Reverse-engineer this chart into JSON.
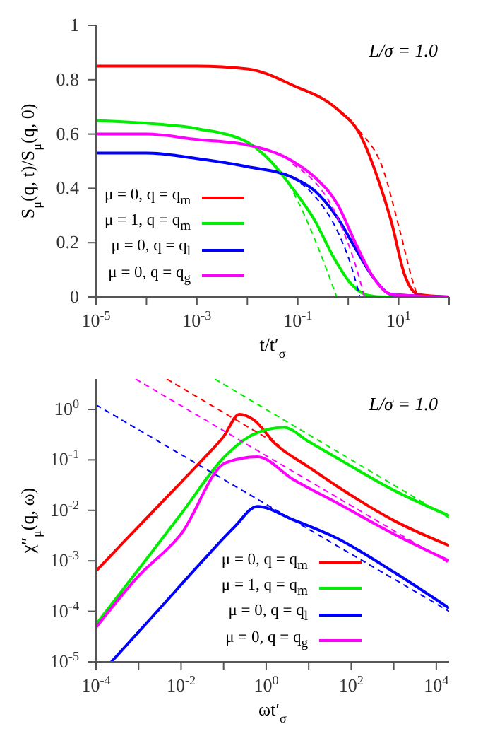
{
  "chart_data": [
    {
      "type": "line",
      "xlabel": "t/t′$_{σ}$",
      "ylabel": "S$_{μ}$(q, t)/S$_{μ}$(q, 0)",
      "annotations": [
        "L/σ = 1.0"
      ],
      "log": "x",
      "grid": false,
      "legend": "bottom left",
      "marker": "none",
      "line_style": "solid",
      "xlim": [
        1e-05,
        100
      ],
      "xticks": [
        {
          "value": 1e-05,
          "label": "10$^{-5}$"
        },
        {
          "value": 0.0001,
          "label": null
        },
        {
          "value": 0.001,
          "label": "10$^{-3}$"
        },
        {
          "value": 0.01,
          "label": null
        },
        {
          "value": 0.1,
          "label": "10$^{-1}$"
        },
        {
          "value": 1,
          "label": null
        },
        {
          "value": 10,
          "label": "10$^{1}$"
        },
        {
          "value": 100,
          "label": null
        }
      ],
      "ylim": [
        0,
        1
      ],
      "yticks": [
        0,
        0.2,
        0.4,
        0.6,
        0.8,
        1
      ],
      "series": [
        {
          "name": "μ = 0, q = q$_{m}$",
          "color": "#ff0000",
          "x": [
            1e-05,
            0.0001,
            0.001,
            0.01,
            0.079,
            0.62,
            1.7,
            3.8,
            7.1,
            13.2,
            24,
            100
          ],
          "values": [
            0.85,
            0.85,
            0.85,
            0.84,
            0.78,
            0.69,
            0.6,
            0.44,
            0.28,
            0.08,
            0.01,
            0
          ]
        },
        {
          "name": "μ = 1, q = q$_{m}$",
          "color": "#00ee00",
          "x": [
            1e-05,
            0.0001,
            0.001,
            0.01,
            0.029,
            0.079,
            0.22,
            0.5,
            1.12,
            2.5,
            5,
            100
          ],
          "values": [
            0.65,
            0.64,
            0.62,
            0.57,
            0.5,
            0.4,
            0.28,
            0.15,
            0.05,
            0.006,
            0,
            0
          ]
        },
        {
          "name": "μ = 0, q = q$_{l}$",
          "color": "#0000ff",
          "x": [
            1e-05,
            0.0001,
            0.001,
            0.01,
            0.079,
            0.22,
            0.62,
            1.38,
            3.2,
            7.1,
            100
          ],
          "values": [
            0.53,
            0.53,
            0.51,
            0.48,
            0.44,
            0.39,
            0.29,
            0.18,
            0.07,
            0.01,
            0
          ]
        },
        {
          "name": "μ = 0, q = q$_{g}$",
          "color": "#ff00ff",
          "x": [
            1e-05,
            0.0001,
            0.001,
            0.01,
            0.079,
            0.22,
            0.62,
            1.38,
            3.2,
            7.1,
            100
          ],
          "values": [
            0.6,
            0.6,
            0.58,
            0.56,
            0.5,
            0.44,
            0.34,
            0.2,
            0.07,
            0.01,
            0
          ]
        },
        {
          "color": "#ff0000",
          "line_style": "dashed",
          "x": [
            0.62,
            1.7,
            4.7,
            10.7,
            19.5,
            24
          ],
          "values": [
            0.69,
            0.61,
            0.48,
            0.24,
            0.05,
            0
          ]
        },
        {
          "color": "#00ee00",
          "line_style": "dashed",
          "x": [
            0.01,
            0.079,
            0.22,
            0.41,
            0.59
          ],
          "values": [
            0.57,
            0.39,
            0.21,
            0.08,
            0
          ]
        },
        {
          "color": "#0000ff",
          "line_style": "dashed",
          "x": [
            0.079,
            0.22,
            0.62,
            1.12,
            1.7
          ],
          "values": [
            0.44,
            0.37,
            0.24,
            0.12,
            0
          ]
        },
        {
          "color": "#ff00ff",
          "line_style": "dashed",
          "x": [
            0.079,
            0.62,
            1.38,
            2.1
          ],
          "values": [
            0.49,
            0.29,
            0.12,
            0
          ]
        }
      ]
    },
    {
      "type": "line",
      "xlabel": "ωt′$_{σ}$",
      "ylabel": "χ″$_{μ}$(q, ω)",
      "annotations": [
        "L/σ = 1.0"
      ],
      "log": "xy",
      "grid": false,
      "legend": "bottom right",
      "marker": "none",
      "line_style": "solid",
      "xlim": [
        0.0001,
        20000.0
      ],
      "xticks": [
        {
          "value": 0.0001,
          "label": "10$^{-4}$"
        },
        {
          "value": 0.001,
          "label": null
        },
        {
          "value": 0.01,
          "label": "10$^{-2}$"
        },
        {
          "value": 0.1,
          "label": null
        },
        {
          "value": 1,
          "label": "10$^{0}$"
        },
        {
          "value": 10,
          "label": null
        },
        {
          "value": 100,
          "label": "10$^{2}$"
        },
        {
          "value": 1000,
          "label": null
        },
        {
          "value": 10000.0,
          "label": "10$^{4}$"
        }
      ],
      "ylim": [
        1e-05,
        4
      ],
      "yticks": [
        {
          "value": 1e-05,
          "label": "10$^{-5}$"
        },
        {
          "value": 0.0001,
          "label": "10$^{-4}$"
        },
        {
          "value": 0.001,
          "label": "10$^{-3}$"
        },
        {
          "value": 0.01,
          "label": "10$^{-2}$"
        },
        {
          "value": 0.1,
          "label": "10$^{-1}$"
        },
        {
          "value": 1,
          "label": "10$^{0}$"
        }
      ],
      "series": [
        {
          "name": "μ = 0, q = q$_{m}$",
          "color": "#ff0000",
          "x": [
            0.0001,
            0.001,
            0.01,
            0.034,
            0.1,
            0.234,
            0.5,
            1.62,
            10,
            47.9,
            1000,
            20000.0
          ],
          "values": [
            0.00063,
            0.0048,
            0.036,
            0.107,
            0.29,
            0.8,
            0.63,
            0.21,
            0.072,
            0.0295,
            0.0063,
            0.002
          ]
        },
        {
          "name": "μ = 1, q = q$_{m}$",
          "color": "#00ee00",
          "x": [
            0.0001,
            0.001,
            0.01,
            0.11,
            0.5,
            2.6,
            10,
            47.9,
            1000,
            20000.0
          ],
          "values": [
            5.5e-05,
            0.00068,
            0.0085,
            0.12,
            0.32,
            0.44,
            0.23,
            0.107,
            0.025,
            0.0078
          ]
        },
        {
          "name": "μ = 0, q = q$_{l}$",
          "color": "#0000ff",
          "x": [
            0.00023,
            0.00295,
            0.034,
            0.18,
            0.62,
            4.3,
            47.9,
            1000,
            20000.0
          ],
          "values": [
            1e-05,
            0.000107,
            0.00105,
            0.0047,
            0.012,
            0.0065,
            0.00275,
            0.0006,
            0.000115
          ]
        },
        {
          "name": "μ = 0, q = q$_{g}$",
          "color": "#ff00ff",
          "x": [
            0.0001,
            0.001,
            0.01,
            0.11,
            0.62,
            4.3,
            47.9,
            1000,
            20000.0
          ],
          "values": [
            4.8e-05,
            0.0005,
            0.0034,
            0.087,
            0.115,
            0.041,
            0.0138,
            0.0034,
            0.001
          ]
        },
        {
          "color": "#ff0000",
          "line_style": "dashed",
          "x": [
            0.0046,
            2
          ],
          "values": [
            4,
            0.195
          ]
        },
        {
          "color": "#00ee00",
          "line_style": "dashed",
          "x": [
            0.062,
            20000.0
          ],
          "values": [
            4,
            0.0071
          ]
        },
        {
          "color": "#0000ff",
          "line_style": "dashed",
          "x": [
            0.0001,
            20000.0
          ],
          "values": [
            1.23,
            0.0001
          ]
        },
        {
          "color": "#ff00ff",
          "line_style": "dashed",
          "x": [
            0.00085,
            20000.0
          ],
          "values": [
            4,
            0.0009
          ]
        }
      ]
    }
  ]
}
